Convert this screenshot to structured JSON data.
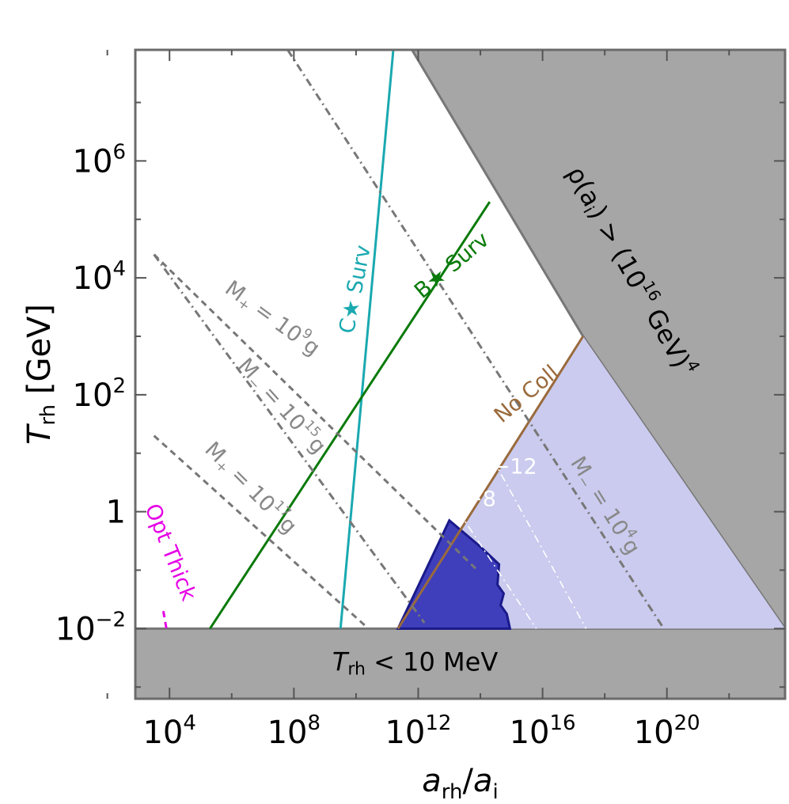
{
  "chart_data": {
    "type": "line",
    "title": "",
    "xlabel": {
      "base": "a",
      "base_sub": "rh",
      "sep": "/",
      "base2": "a",
      "base2_sub": "i"
    },
    "ylabel": {
      "base": "T",
      "sub": "rh",
      "unit": "[GeV]"
    },
    "x_scale": "log10",
    "y_scale": "log10",
    "xlim_log10": [
      2.9,
      23.8
    ],
    "ylim_log10": [
      -3.2,
      7.9
    ],
    "grid": false,
    "legend": "none",
    "x_ticks": [
      {
        "exp": 4,
        "base": "10",
        "sup": "4"
      },
      {
        "exp": 8,
        "base": "10",
        "sup": "8"
      },
      {
        "exp": 12,
        "base": "10",
        "sup": "12"
      },
      {
        "exp": 16,
        "base": "10",
        "sup": "16"
      },
      {
        "exp": 20,
        "base": "10",
        "sup": "20"
      }
    ],
    "x_minor_ticks": [
      2,
      6,
      10,
      14,
      18,
      22
    ],
    "y_ticks": [
      {
        "exp": -2,
        "base": "10",
        "sup": "−2"
      },
      {
        "exp": 0,
        "base": "1",
        "sup": ""
      },
      {
        "exp": 2,
        "base": "10",
        "sup": "2"
      },
      {
        "exp": 4,
        "base": "10",
        "sup": "4"
      },
      {
        "exp": 6,
        "base": "10",
        "sup": "6"
      }
    ],
    "y_minor_ticks": [
      -3,
      -1,
      1,
      3,
      5,
      7
    ],
    "regions": [
      {
        "name": "energy-density-excluded",
        "color": "#a6a6a6",
        "edge": "#777777",
        "points": [
          [
            11.8,
            7.9
          ],
          [
            23.8,
            7.9
          ],
          [
            23.8,
            -2
          ],
          [
            17.3,
            3
          ]
        ]
      },
      {
        "name": "low-reheat-excluded",
        "color": "#a6a6a6",
        "edge": "#777777",
        "points": [
          [
            2.9,
            -2
          ],
          [
            23.8,
            -2
          ],
          [
            23.8,
            -3.2
          ],
          [
            2.9,
            -3.2
          ]
        ]
      },
      {
        "name": "no-collision-region",
        "color": "#cacbee",
        "edge": null,
        "points": [
          [
            11.35,
            -2
          ],
          [
            17.3,
            3
          ],
          [
            23.8,
            -2
          ]
        ]
      },
      {
        "name": "constraint-region",
        "color": "#3f3fbc",
        "edge": "#1a1a8c",
        "points": [
          [
            11.35,
            -2
          ],
          [
            13.0,
            -0.15
          ],
          [
            14.0,
            -0.6
          ],
          [
            14.6,
            -0.9
          ],
          [
            14.55,
            -1.25
          ],
          [
            14.75,
            -1.4
          ],
          [
            14.65,
            -1.6
          ],
          [
            14.85,
            -1.75
          ],
          [
            14.95,
            -2
          ]
        ]
      }
    ],
    "series": [
      {
        "name": "C★ Surv",
        "color": "#1aa9b0",
        "style": "solid",
        "points": [
          [
            9.5,
            -2
          ],
          [
            11.2,
            7.9
          ]
        ]
      },
      {
        "name": "B★ Surv",
        "color": "#0a7a0a",
        "style": "solid",
        "points": [
          [
            5.3,
            -2
          ],
          [
            14.3,
            5.3
          ]
        ]
      },
      {
        "name": "No Coll",
        "color": "#9a6a3c",
        "style": "solid",
        "points": [
          [
            11.35,
            -2
          ],
          [
            17.3,
            3
          ]
        ]
      },
      {
        "name": "M₊ = 10⁹g",
        "color": "#777777",
        "style": "dashed",
        "points": [
          [
            3.5,
            4.4
          ],
          [
            13.9,
            -1.0
          ]
        ]
      },
      {
        "name": "M₋ = 10¹⁵g",
        "color": "#777777",
        "style": "dashdot",
        "points": [
          [
            3.5,
            4.4
          ],
          [
            12.2,
            -1.9
          ]
        ]
      },
      {
        "name": "M₊ = 10¹⁷g",
        "color": "#777777",
        "style": "dashed",
        "points": [
          [
            3.5,
            1.3
          ],
          [
            10.4,
            -2
          ]
        ]
      },
      {
        "name": "M₋ = 10⁴g",
        "color": "#777777",
        "style": "dashdot",
        "points": [
          [
            7.8,
            7.9
          ],
          [
            19.9,
            -2
          ]
        ]
      },
      {
        "name": "Opt Thick",
        "color": "#e600e6",
        "style": "dashed",
        "points": [
          [
            3.8,
            -1.7
          ],
          [
            3.9,
            -2
          ]
        ]
      },
      {
        "name": "−12",
        "color": "#ffffff",
        "style": "dashdot",
        "points": [
          [
            14.4,
            0.9
          ],
          [
            17.4,
            -2
          ]
        ]
      },
      {
        "name": "−8",
        "color": "#ffffff",
        "style": "dashdot",
        "points": [
          [
            13.3,
            0
          ],
          [
            15.8,
            -2
          ]
        ]
      }
    ],
    "annotations": [
      {
        "name": "rho-label",
        "parts": [
          "ρ(a",
          "i",
          ") > (10",
          "16",
          " GeV)",
          "4"
        ],
        "color": "#000000",
        "at": [
          18.8,
          4.1
        ],
        "rotate": 61
      },
      {
        "name": "trh-label",
        "parts": [
          "T",
          "rh",
          "< 10 MeV"
        ],
        "color": "#000000",
        "at": [
          11.9,
          -2.6
        ]
      },
      {
        "name": "c-surv-label",
        "text": "C★ Surv",
        "color": "#1aa9b0",
        "at": [
          10.0,
          3.8
        ],
        "rotate": -79
      },
      {
        "name": "b-surv-label",
        "text": "B★ Surv",
        "color": "#0a7a0a",
        "at": [
          13.1,
          4.2
        ],
        "rotate": -40
      },
      {
        "name": "no-coll-label",
        "text": "No Coll",
        "color": "#9a6a3c",
        "at": [
          15.5,
          2.0
        ],
        "rotate": -40
      },
      {
        "name": "m-plus-9-label",
        "parts": [
          "M",
          "+",
          " = 10",
          "9",
          "g"
        ],
        "color": "#888888",
        "at": [
          7.3,
          3.3
        ],
        "rotate": 36
      },
      {
        "name": "m-minus-15-label",
        "parts": [
          "M",
          "−",
          " = 10",
          "15",
          "g"
        ],
        "color": "#888888",
        "at": [
          7.6,
          1.8
        ],
        "rotate": 48
      },
      {
        "name": "m-plus-17-label",
        "parts": [
          "M",
          "+",
          " = 10",
          "17",
          "g"
        ],
        "color": "#888888",
        "at": [
          6.6,
          0.4
        ],
        "rotate": 45
      },
      {
        "name": "m-minus-4-label",
        "parts": [
          "M",
          "−",
          " = 10",
          "4",
          "g"
        ],
        "color": "#888888",
        "at": [
          18.0,
          0.1
        ],
        "rotate": 58
      },
      {
        "name": "opt-thick-label",
        "text": "Opt Thick",
        "color": "#e600e6",
        "at": [
          4.0,
          -0.7
        ],
        "rotate": 68
      },
      {
        "name": "label-minus-12",
        "text": "−12",
        "color": "#ffffff",
        "at": [
          15.1,
          0.75
        ]
      },
      {
        "name": "label-minus-8",
        "text": "−8",
        "color": "#ffffff",
        "at": [
          14.0,
          0.2
        ]
      }
    ]
  }
}
